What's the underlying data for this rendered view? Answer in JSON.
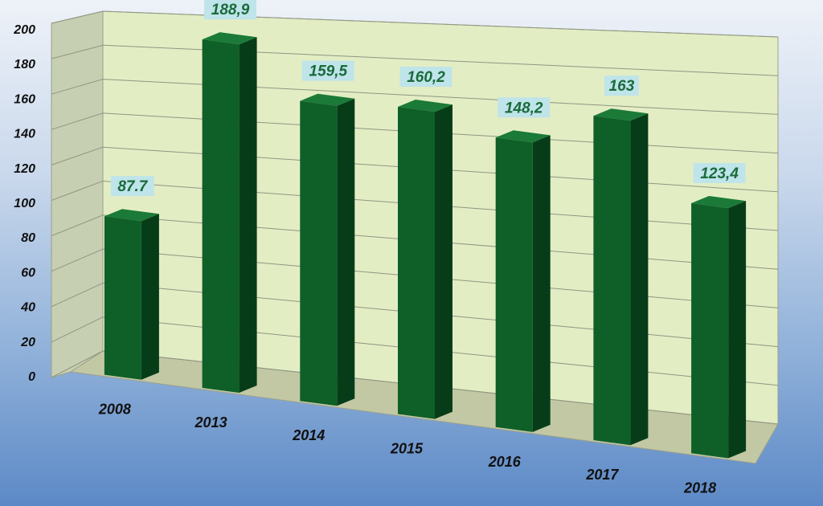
{
  "chart_data": {
    "type": "bar",
    "categories": [
      "2008",
      "2013",
      "2014",
      "2015",
      "2016",
      "2017",
      "2018"
    ],
    "values": [
      87.7,
      188.9,
      159.5,
      160.2,
      148.2,
      163,
      123.4
    ],
    "value_labels": [
      "87.7",
      "188,9",
      "159,5",
      "160,2",
      "148,2",
      "163",
      "123,4"
    ],
    "yticks": [
      "0",
      "20",
      "40",
      "60",
      "80",
      "100",
      "120",
      "140",
      "160",
      "180",
      "200"
    ],
    "ylim": [
      0,
      200
    ],
    "grid": true,
    "colors": {
      "bar_front": "#0e5f28",
      "bar_side": "#063d18",
      "bar_top": "#1b7a38",
      "wall": "#e3edc4",
      "side_wall": "#c7cfb2",
      "floor": "#c2c8a4",
      "label_box": "#bfe4ea",
      "label_text": "#1a6b3a"
    }
  }
}
